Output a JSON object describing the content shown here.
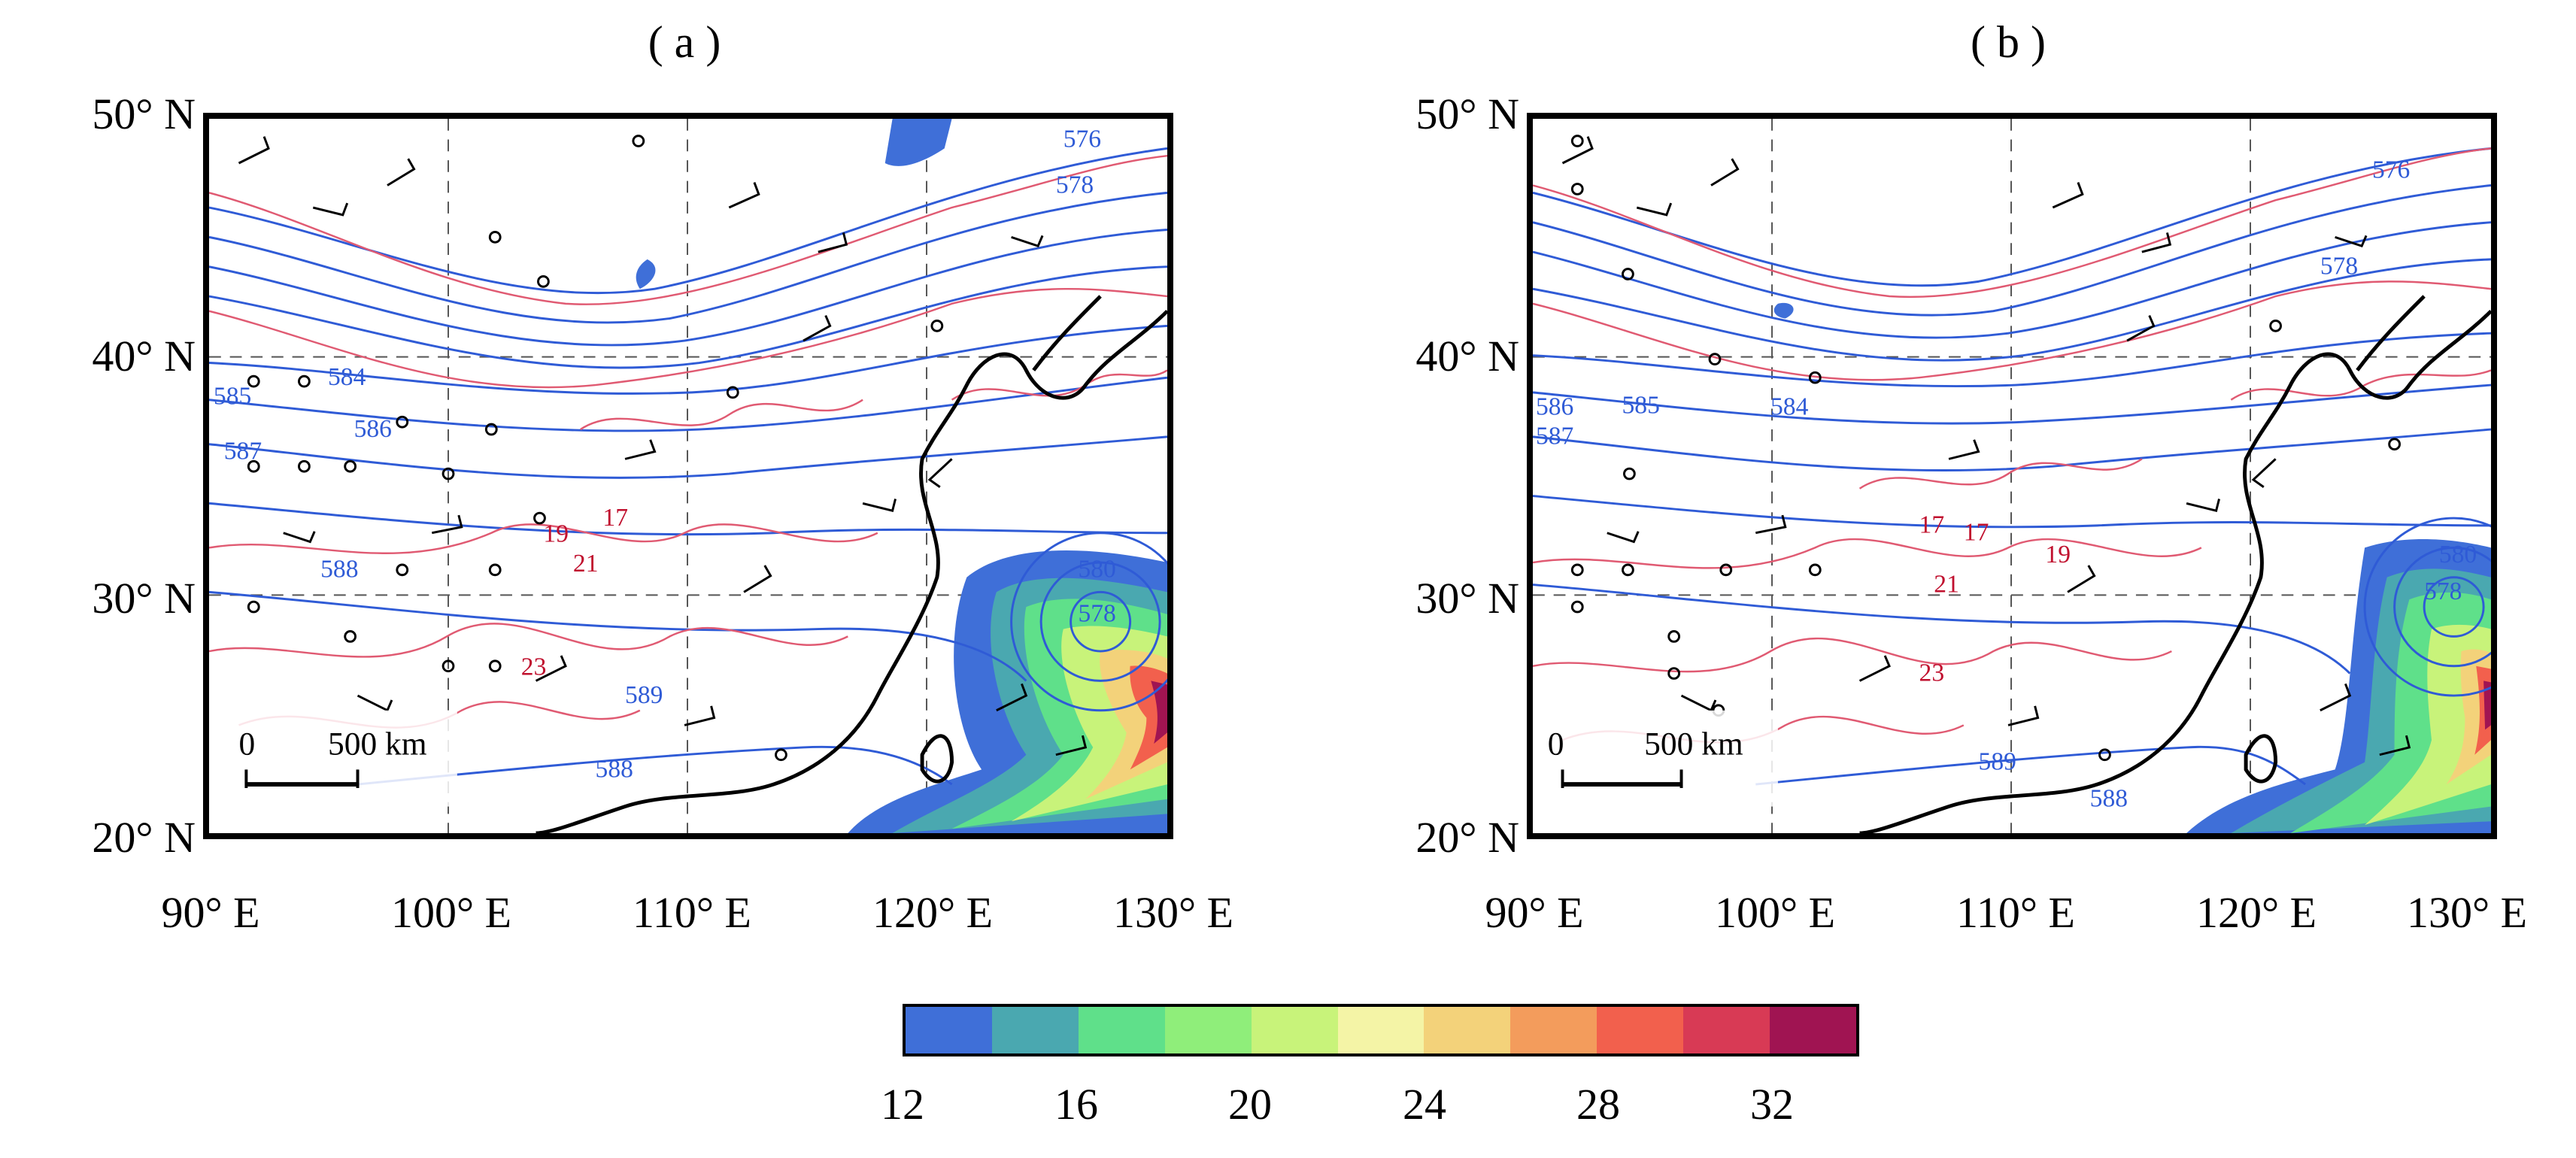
{
  "panels": [
    {
      "label": "( a )",
      "lat_ticks": [
        "50° N",
        "40° N",
        "30° N",
        "20° N"
      ],
      "lon_ticks": [
        "90° E",
        "100° E",
        "110° E",
        "120° E",
        "130° E"
      ],
      "blue_labels": [
        "576",
        "578",
        "585",
        "584",
        "587",
        "586",
        "588",
        "589",
        "588",
        "580",
        "578"
      ],
      "red_labels": [
        "19",
        "17",
        "21",
        "23"
      ],
      "scale_bar": {
        "zero": "0",
        "distance": "500 km"
      }
    },
    {
      "label": "( b )",
      "lat_ticks": [
        "50° N",
        "40° N",
        "30° N",
        "20° N"
      ],
      "lon_ticks": [
        "90° E",
        "100° E",
        "110° E",
        "120° E",
        "130° E"
      ],
      "blue_labels": [
        "576",
        "578",
        "586",
        "587",
        "585",
        "584",
        "589",
        "588",
        "580",
        "578"
      ],
      "red_labels": [
        "17",
        "17",
        "19",
        "21",
        "23"
      ],
      "scale_bar": {
        "zero": "0",
        "distance": "500 km"
      }
    }
  ],
  "colorbar": {
    "ticks": [
      "12",
      "16",
      "20",
      "24",
      "28",
      "32"
    ],
    "colors": [
      "#3f6fd8",
      "#4aa8b0",
      "#5fe08a",
      "#8fee7a",
      "#c8f37a",
      "#f4f4a6",
      "#f3d27a",
      "#f39c5c",
      "#f2604d",
      "#d83a55",
      "#a01452"
    ]
  },
  "colors": {
    "geopotential_contour": "#2f5bd6",
    "temperature_contour": "#e05a72",
    "coastline": "#000000"
  }
}
